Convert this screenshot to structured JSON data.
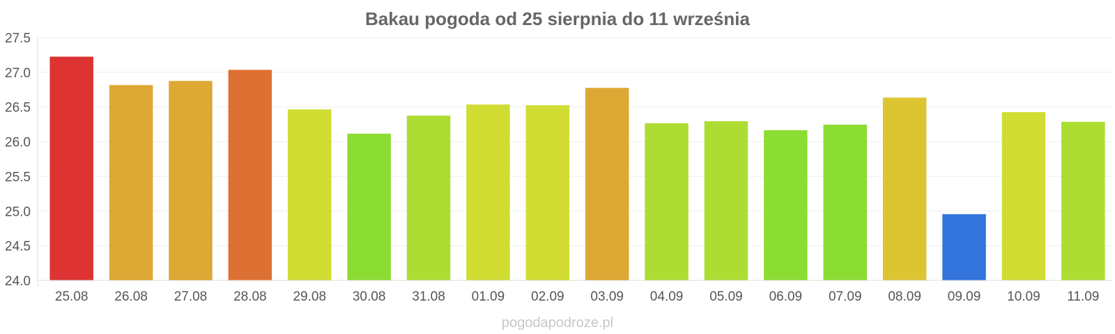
{
  "chart_data": {
    "type": "bar",
    "title": "Bakau pogoda od 25 sierpnia do 11 września",
    "xlabel": "",
    "ylabel": "",
    "ylim": [
      24.0,
      27.5
    ],
    "yticks": [
      "24.0",
      "24.5",
      "25.0",
      "25.5",
      "26.0",
      "26.5",
      "27.0",
      "27.5"
    ],
    "grid": "horizontal",
    "categories": [
      "25.08",
      "26.08",
      "27.08",
      "28.08",
      "29.08",
      "30.08",
      "31.08",
      "01.09",
      "02.09",
      "03.09",
      "04.09",
      "05.09",
      "06.09",
      "07.09",
      "08.09",
      "09.09",
      "10.09",
      "11.09"
    ],
    "values": [
      27.22,
      26.81,
      26.87,
      27.03,
      26.46,
      26.11,
      26.37,
      26.53,
      26.52,
      26.77,
      26.26,
      26.29,
      26.16,
      26.24,
      26.63,
      24.95,
      26.42,
      26.28
    ],
    "colors": [
      "#dd3333",
      "#dda833",
      "#dda833",
      "#dd7033",
      "#d1dd33",
      "#8cdd33",
      "#addd33",
      "#d1dd33",
      "#d1dd33",
      "#dda833",
      "#addd33",
      "#addd33",
      "#8cdd33",
      "#8cdd33",
      "#ddc433",
      "#3374dd",
      "#d1dd33",
      "#addd33"
    ]
  },
  "watermark": "pogodapodroze.pl"
}
